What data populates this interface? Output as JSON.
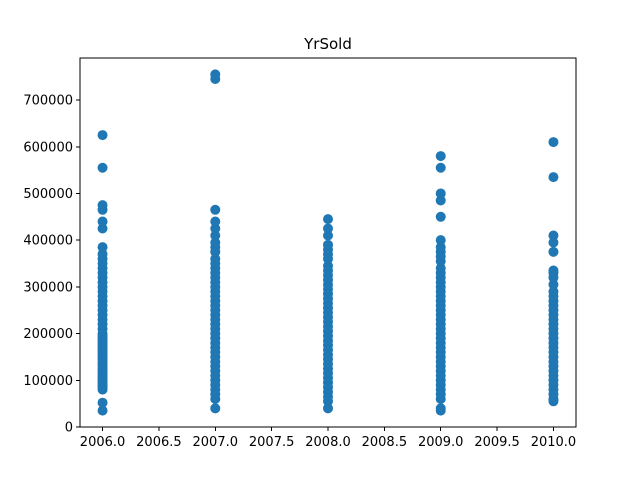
{
  "chart_data": {
    "type": "scatter",
    "title": "YrSold",
    "xlabel": "",
    "ylabel": "",
    "xlim": [
      2005.8,
      2010.2
    ],
    "ylim": [
      0,
      790000
    ],
    "x_ticks": [
      2006.0,
      2006.5,
      2007.0,
      2007.5,
      2008.0,
      2008.5,
      2009.0,
      2009.5,
      2010.0
    ],
    "x_tick_labels": [
      "2006.0",
      "2006.5",
      "2007.0",
      "2007.5",
      "2008.0",
      "2008.5",
      "2009.0",
      "2009.5",
      "2010.0"
    ],
    "y_ticks": [
      0,
      100000,
      200000,
      300000,
      400000,
      500000,
      600000,
      700000
    ],
    "y_tick_labels": [
      "0",
      "100000",
      "200000",
      "300000",
      "400000",
      "500000",
      "600000",
      "700000"
    ],
    "grid": false,
    "colors": {
      "point": "#1f77b4",
      "axis": "#000000"
    },
    "series": [
      {
        "x": 2006,
        "y": [
          35000,
          52000,
          80000,
          85000,
          90000,
          95000,
          100000,
          105000,
          110000,
          115000,
          120000,
          125000,
          130000,
          135000,
          140000,
          145000,
          150000,
          155000,
          160000,
          165000,
          170000,
          175000,
          180000,
          185000,
          190000,
          195000,
          200000,
          210000,
          220000,
          230000,
          240000,
          250000,
          260000,
          270000,
          280000,
          290000,
          300000,
          310000,
          320000,
          330000,
          340000,
          350000,
          360000,
          370000,
          385000,
          425000,
          440000,
          465000,
          475000,
          555000,
          625000
        ]
      },
      {
        "x": 2007,
        "y": [
          40000,
          60000,
          70000,
          80000,
          90000,
          100000,
          110000,
          120000,
          130000,
          140000,
          150000,
          160000,
          170000,
          180000,
          190000,
          200000,
          210000,
          220000,
          230000,
          240000,
          250000,
          260000,
          270000,
          280000,
          290000,
          300000,
          310000,
          320000,
          330000,
          340000,
          350000,
          360000,
          375000,
          385000,
          395000,
          410000,
          425000,
          440000,
          465000,
          745000,
          755000
        ]
      },
      {
        "x": 2008,
        "y": [
          40000,
          55000,
          65000,
          75000,
          85000,
          95000,
          105000,
          115000,
          125000,
          135000,
          145000,
          155000,
          165000,
          175000,
          185000,
          195000,
          205000,
          215000,
          225000,
          235000,
          245000,
          255000,
          265000,
          275000,
          285000,
          295000,
          305000,
          315000,
          325000,
          335000,
          345000,
          360000,
          370000,
          380000,
          390000,
          410000,
          425000,
          445000
        ]
      },
      {
        "x": 2009,
        "y": [
          35000,
          40000,
          60000,
          70000,
          80000,
          90000,
          100000,
          110000,
          120000,
          130000,
          140000,
          150000,
          160000,
          170000,
          180000,
          190000,
          200000,
          210000,
          220000,
          230000,
          240000,
          250000,
          260000,
          270000,
          280000,
          290000,
          300000,
          310000,
          320000,
          330000,
          340000,
          355000,
          365000,
          375000,
          385000,
          400000,
          450000,
          485000,
          500000,
          555000,
          580000
        ]
      },
      {
        "x": 2010,
        "y": [
          55000,
          60000,
          70000,
          80000,
          90000,
          100000,
          110000,
          120000,
          130000,
          140000,
          150000,
          160000,
          170000,
          180000,
          190000,
          200000,
          210000,
          220000,
          230000,
          240000,
          250000,
          260000,
          270000,
          280000,
          290000,
          305000,
          320000,
          330000,
          335000,
          375000,
          395000,
          410000,
          535000,
          610000
        ]
      }
    ]
  }
}
